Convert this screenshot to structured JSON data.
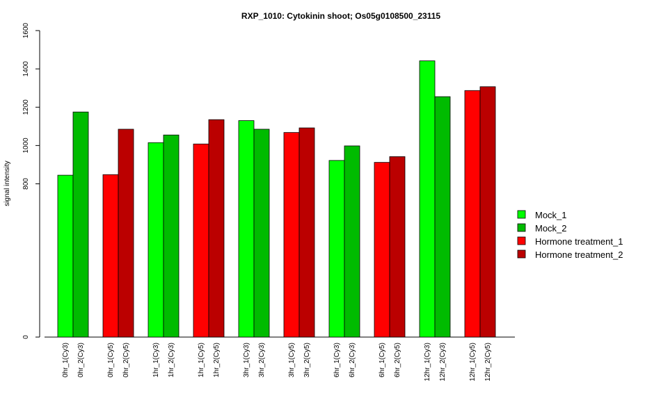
{
  "chart_data": {
    "type": "bar",
    "title": "RXP_1010: Cytokinin shoot; Os05g0108500_23115",
    "xlabel": "",
    "ylabel": "signal intensity",
    "ylim": [
      0,
      1600
    ],
    "yticks": [
      0,
      800,
      1000,
      1200,
      1400,
      1600
    ],
    "legend_position": "right",
    "series": [
      {
        "name": "Mock_1",
        "color": "#00FF00"
      },
      {
        "name": "Mock_2",
        "color": "#00BB00"
      },
      {
        "name": "Hormone treatment_1",
        "color": "#FF0000"
      },
      {
        "name": "Hormone treatment_2",
        "color": "#BB0000"
      }
    ],
    "groups": [
      {
        "bars": [
          {
            "label": "0hr_1(Cy3)",
            "value": 845,
            "series": 0
          },
          {
            "label": "0hr_2(Cy3)",
            "value": 1175,
            "series": 1
          }
        ]
      },
      {
        "bars": [
          {
            "label": "0hr_1(Cy5)",
            "value": 848,
            "series": 2
          },
          {
            "label": "0hr_2(Cy5)",
            "value": 1085,
            "series": 3
          }
        ]
      },
      {
        "bars": [
          {
            "label": "1hr_1(Cy3)",
            "value": 1015,
            "series": 0
          },
          {
            "label": "1hr_2(Cy3)",
            "value": 1055,
            "series": 1
          }
        ]
      },
      {
        "bars": [
          {
            "label": "1hr_1(Cy5)",
            "value": 1008,
            "series": 2
          },
          {
            "label": "1hr_2(Cy5)",
            "value": 1135,
            "series": 3
          }
        ]
      },
      {
        "bars": [
          {
            "label": "3hr_1(Cy3)",
            "value": 1130,
            "series": 0
          },
          {
            "label": "3hr_2(Cy3)",
            "value": 1085,
            "series": 1
          }
        ]
      },
      {
        "bars": [
          {
            "label": "3hr_1(Cy5)",
            "value": 1068,
            "series": 2
          },
          {
            "label": "3hr_2(Cy5)",
            "value": 1092,
            "series": 3
          }
        ]
      },
      {
        "bars": [
          {
            "label": "6hr_1(Cy3)",
            "value": 922,
            "series": 0
          },
          {
            "label": "6hr_2(Cy3)",
            "value": 998,
            "series": 1
          }
        ]
      },
      {
        "bars": [
          {
            "label": "6hr_1(Cy5)",
            "value": 912,
            "series": 2
          },
          {
            "label": "6hr_2(Cy5)",
            "value": 942,
            "series": 3
          }
        ]
      },
      {
        "bars": [
          {
            "label": "12hr_1(Cy3)",
            "value": 1442,
            "series": 0
          },
          {
            "label": "12hr_2(Cy3)",
            "value": 1255,
            "series": 1
          }
        ]
      },
      {
        "bars": [
          {
            "label": "12hr_1(Cy5)",
            "value": 1287,
            "series": 2
          },
          {
            "label": "12hr_2(Cy5)",
            "value": 1307,
            "series": 3
          }
        ]
      }
    ]
  }
}
